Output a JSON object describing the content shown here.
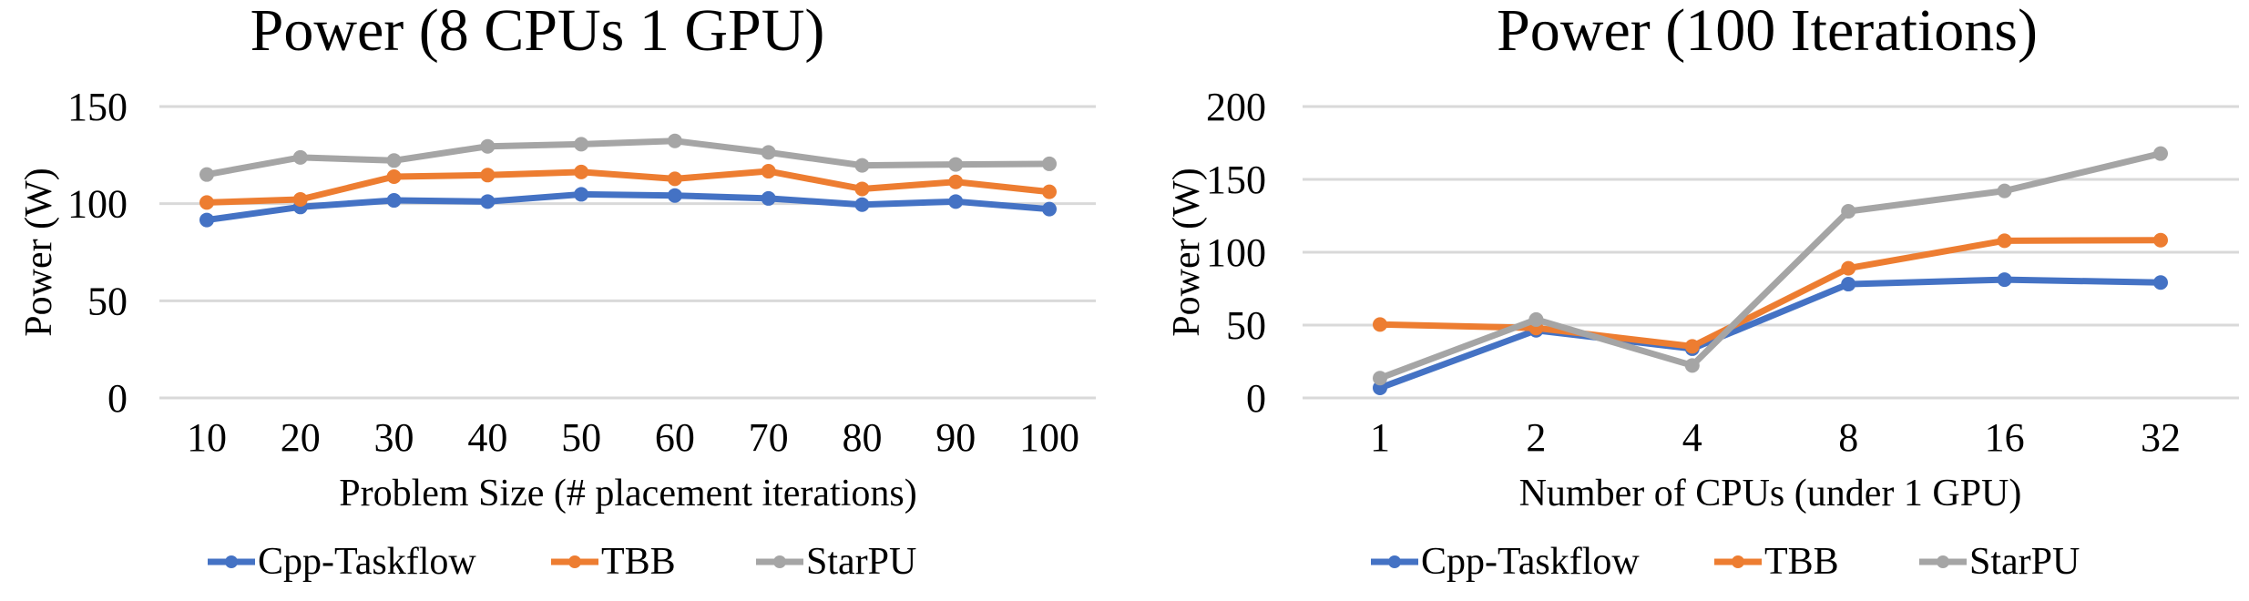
{
  "colors": {
    "Cpp-Taskflow": "#4472C4",
    "TBB": "#ED7D31",
    "StarPU": "#A5A5A5",
    "grid": "#D9D9D9"
  },
  "chart_data": [
    {
      "id": "left",
      "type": "line",
      "title": "Power (8 CPUs 1 GPU)",
      "xlabel": "Problem Size (# placement iterations)",
      "ylabel": "Power (W)",
      "categories": [
        "10",
        "20",
        "30",
        "40",
        "50",
        "60",
        "70",
        "80",
        "90",
        "100"
      ],
      "ylim": [
        0,
        150
      ],
      "yticks": [
        0,
        50,
        100,
        150
      ],
      "grid": true,
      "legend": "bottom",
      "series": [
        {
          "name": "Cpp-Taskflow",
          "values": [
            91.6,
            98.3,
            101.7,
            101.1,
            104.8,
            104.2,
            102.7,
            99.5,
            101.1,
            97.2
          ]
        },
        {
          "name": "TBB",
          "values": [
            100.6,
            102.2,
            113.9,
            114.7,
            116.3,
            112.8,
            116.7,
            107.6,
            111.2,
            106.1
          ]
        },
        {
          "name": "StarPU",
          "values": [
            115.0,
            123.8,
            122.2,
            129.5,
            130.6,
            132.3,
            126.4,
            119.7,
            120.2,
            120.5
          ]
        }
      ]
    },
    {
      "id": "right",
      "type": "line",
      "title": "Power (100 Iterations)",
      "xlabel": "Number of CPUs (under 1 GPU)",
      "ylabel": "Power (W)",
      "categories": [
        "1",
        "2",
        "4",
        "8",
        "16",
        "32"
      ],
      "ylim": [
        0,
        200
      ],
      "yticks": [
        0,
        50,
        100,
        150,
        200
      ],
      "grid": true,
      "legend": "bottom",
      "series": [
        {
          "name": "Cpp-Taskflow",
          "values": [
            6.9,
            46.4,
            33.8,
            78.1,
            81.2,
            79.2
          ]
        },
        {
          "name": "TBB",
          "values": [
            50.4,
            48.0,
            35.4,
            89.0,
            107.9,
            108.3
          ]
        },
        {
          "name": "StarPU",
          "values": [
            13.6,
            53.8,
            22.3,
            128.1,
            142.1,
            167.7
          ]
        }
      ]
    }
  ]
}
